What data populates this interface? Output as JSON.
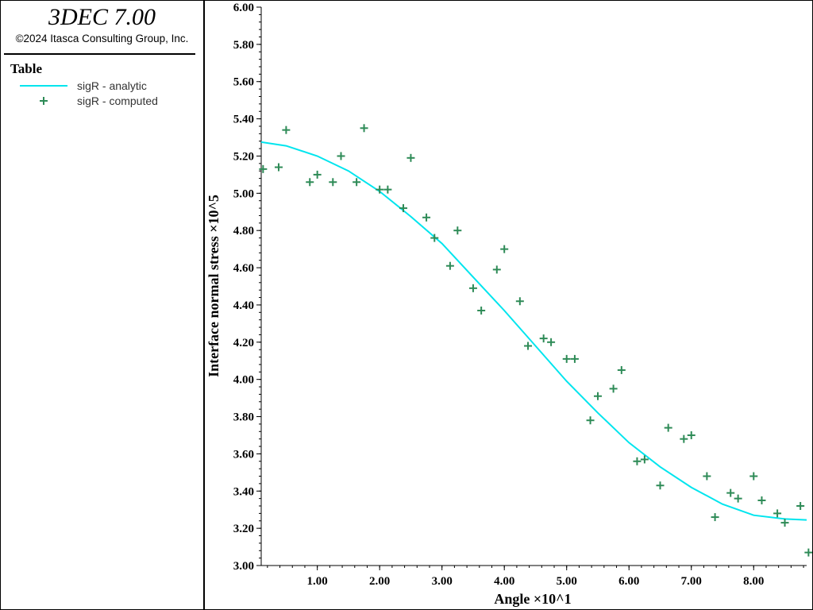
{
  "app": {
    "title": "3DEC 7.00",
    "copyright": "©2024 Itasca Consulting Group, Inc."
  },
  "legend": {
    "title": "Table",
    "entries": [
      {
        "label": "sigR - analytic",
        "marker": "line",
        "color": "#00e5ee"
      },
      {
        "label": "sigR - computed",
        "marker": "plus",
        "color": "#2e8b57"
      }
    ]
  },
  "chart_data": {
    "type": "scatter",
    "title": "",
    "xlabel": "Angle ×10^1",
    "ylabel": "Interface normal stress ×10^5",
    "xlim": [
      0.1,
      8.85
    ],
    "ylim": [
      3.0,
      6.0
    ],
    "x_ticks": [
      "1.00",
      "2.00",
      "3.00",
      "4.00",
      "5.00",
      "6.00",
      "7.00",
      "8.00"
    ],
    "y_ticks": [
      "3.00",
      "3.20",
      "3.40",
      "3.60",
      "3.80",
      "4.00",
      "4.20",
      "4.40",
      "4.60",
      "4.80",
      "5.00",
      "5.20",
      "5.40",
      "5.60",
      "5.80",
      "6.00"
    ],
    "grid": false,
    "legend_placement": "left panel",
    "series": [
      {
        "name": "sigR - analytic",
        "style": "line",
        "color": "#00e5ee",
        "x": [
          0.0,
          0.5,
          1.0,
          1.5,
          2.0,
          2.5,
          3.0,
          3.5,
          4.0,
          4.5,
          5.0,
          5.5,
          6.0,
          6.5,
          7.0,
          7.5,
          8.0,
          8.5,
          8.85
        ],
        "y": [
          5.28,
          5.255,
          5.2,
          5.12,
          5.01,
          4.875,
          4.73,
          4.55,
          4.37,
          4.18,
          3.99,
          3.82,
          3.66,
          3.53,
          3.42,
          3.33,
          3.27,
          3.25,
          3.245
        ]
      },
      {
        "name": "sigR - computed",
        "style": "plus",
        "color": "#2e8b57",
        "x": [
          0.13,
          0.38,
          0.5,
          0.88,
          1.0,
          1.25,
          1.38,
          1.63,
          1.75,
          2.0,
          2.13,
          2.38,
          2.5,
          2.75,
          2.88,
          3.13,
          3.25,
          3.5,
          3.63,
          3.88,
          4.0,
          4.25,
          4.38,
          4.63,
          4.75,
          5.0,
          5.13,
          5.38,
          5.5,
          5.75,
          5.88,
          6.13,
          6.25,
          6.5,
          6.63,
          6.88,
          7.0,
          7.25,
          7.38,
          7.63,
          7.75,
          8.0,
          8.13,
          8.38,
          8.5,
          8.75,
          8.88
        ],
        "y": [
          5.13,
          5.14,
          5.34,
          5.06,
          5.1,
          5.06,
          5.2,
          5.06,
          5.35,
          5.02,
          5.02,
          4.92,
          5.19,
          4.87,
          4.76,
          4.61,
          4.8,
          4.49,
          4.37,
          4.59,
          4.7,
          4.42,
          4.18,
          4.22,
          4.2,
          4.11,
          4.11,
          3.78,
          3.91,
          3.95,
          4.05,
          3.56,
          3.57,
          3.43,
          3.74,
          3.68,
          3.7,
          3.48,
          3.26,
          3.39,
          3.36,
          3.48,
          3.35,
          3.28,
          3.23,
          3.32,
          3.07
        ]
      }
    ]
  }
}
